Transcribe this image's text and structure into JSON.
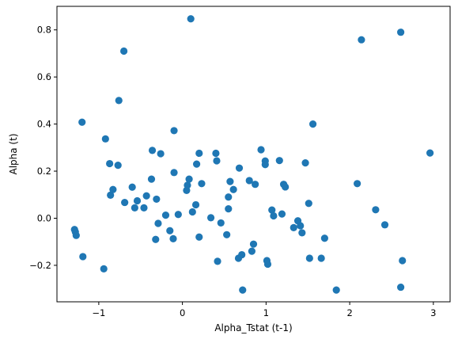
{
  "chart_data": {
    "type": "scatter",
    "title": "",
    "xlabel": "Alpha_Tstat (t-1)",
    "ylabel": "Alpha (t)",
    "xlim": [
      -1.5,
      3.2
    ],
    "ylim": [
      -0.355,
      0.9
    ],
    "xticks": [
      -1,
      0,
      1,
      2,
      3
    ],
    "xtick_labels": [
      "−1",
      "0",
      "1",
      "2",
      "3"
    ],
    "yticks": [
      -0.2,
      0.0,
      0.2,
      0.4,
      0.6,
      0.8
    ],
    "ytick_labels": [
      "−0.2",
      "0.0",
      "0.2",
      "0.4",
      "0.6",
      "0.8"
    ],
    "grid": false,
    "legend": "none",
    "marker_color": "#1f77b4",
    "points": [
      [
        -1.29,
        -0.048
      ],
      [
        -1.28,
        -0.058
      ],
      [
        -1.27,
        -0.073
      ],
      [
        -1.2,
        0.408
      ],
      [
        -1.19,
        -0.163
      ],
      [
        -0.94,
        -0.215
      ],
      [
        -0.92,
        0.337
      ],
      [
        -0.87,
        0.232
      ],
      [
        -0.86,
        0.098
      ],
      [
        -0.83,
        0.122
      ],
      [
        -0.77,
        0.225
      ],
      [
        -0.76,
        0.5
      ],
      [
        -0.7,
        0.71
      ],
      [
        -0.69,
        0.067
      ],
      [
        -0.6,
        0.132
      ],
      [
        -0.57,
        0.044
      ],
      [
        -0.54,
        0.074
      ],
      [
        -0.46,
        0.044
      ],
      [
        -0.43,
        0.095
      ],
      [
        -0.37,
        0.166
      ],
      [
        -0.36,
        0.288
      ],
      [
        -0.32,
        -0.09
      ],
      [
        -0.31,
        0.081
      ],
      [
        -0.29,
        -0.022
      ],
      [
        -0.26,
        0.274
      ],
      [
        -0.2,
        0.013
      ],
      [
        -0.15,
        -0.053
      ],
      [
        -0.11,
        -0.087
      ],
      [
        -0.1,
        0.372
      ],
      [
        -0.1,
        0.194
      ],
      [
        -0.05,
        0.016
      ],
      [
        0.05,
        0.118
      ],
      [
        0.06,
        0.14
      ],
      [
        0.08,
        0.166
      ],
      [
        0.1,
        0.847
      ],
      [
        0.12,
        0.027
      ],
      [
        0.16,
        0.057
      ],
      [
        0.17,
        0.23
      ],
      [
        0.2,
        0.276
      ],
      [
        0.2,
        -0.08
      ],
      [
        0.23,
        0.147
      ],
      [
        0.34,
        0.002
      ],
      [
        0.4,
        0.276
      ],
      [
        0.41,
        0.244
      ],
      [
        0.42,
        -0.183
      ],
      [
        0.46,
        -0.02
      ],
      [
        0.53,
        -0.07
      ],
      [
        0.55,
        0.09
      ],
      [
        0.55,
        0.04
      ],
      [
        0.57,
        0.156
      ],
      [
        0.61,
        0.122
      ],
      [
        0.67,
        -0.17
      ],
      [
        0.68,
        0.213
      ],
      [
        0.71,
        -0.155
      ],
      [
        0.72,
        -0.305
      ],
      [
        0.8,
        0.16
      ],
      [
        0.83,
        -0.14
      ],
      [
        0.85,
        -0.11
      ],
      [
        0.87,
        0.144
      ],
      [
        0.94,
        0.291
      ],
      [
        0.99,
        0.243
      ],
      [
        0.99,
        0.228
      ],
      [
        1.01,
        -0.18
      ],
      [
        1.02,
        -0.195
      ],
      [
        1.07,
        0.035
      ],
      [
        1.09,
        0.01
      ],
      [
        1.16,
        0.245
      ],
      [
        1.19,
        0.018
      ],
      [
        1.21,
        0.144
      ],
      [
        1.23,
        0.133
      ],
      [
        1.33,
        -0.04
      ],
      [
        1.38,
        -0.011
      ],
      [
        1.41,
        -0.032
      ],
      [
        1.43,
        -0.062
      ],
      [
        1.47,
        0.235
      ],
      [
        1.51,
        0.063
      ],
      [
        1.52,
        -0.17
      ],
      [
        1.56,
        0.4
      ],
      [
        1.66,
        -0.17
      ],
      [
        1.7,
        -0.085
      ],
      [
        1.84,
        -0.305
      ],
      [
        2.09,
        0.147
      ],
      [
        2.14,
        0.758
      ],
      [
        2.31,
        0.036
      ],
      [
        2.42,
        -0.028
      ],
      [
        2.61,
        0.79
      ],
      [
        2.61,
        -0.293
      ],
      [
        2.63,
        -0.18
      ],
      [
        2.96,
        0.277
      ]
    ]
  }
}
